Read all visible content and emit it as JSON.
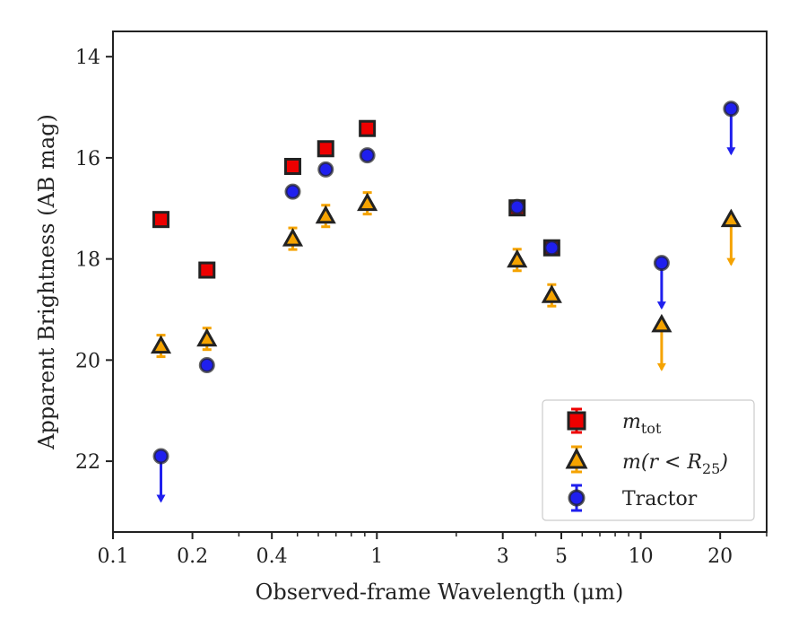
{
  "chart_data": {
    "type": "scatter",
    "xlabel": "Observed-frame Wavelength (μm)",
    "ylabel": "Apparent Brightness (AB mag)",
    "xscale": "log",
    "xlim": [
      0.1,
      30
    ],
    "ylim": [
      23.4,
      13.5
    ],
    "y_inverted": true,
    "x_ticks": [
      0.1,
      0.2,
      0.4,
      1,
      3,
      5,
      10,
      20
    ],
    "x_tick_labels": [
      "0.1",
      "0.2",
      "0.4",
      "1",
      "3",
      "5",
      "10",
      "20"
    ],
    "y_ticks": [
      14,
      16,
      18,
      20,
      22
    ],
    "y_tick_labels": [
      "14",
      "16",
      "18",
      "20",
      "22"
    ],
    "grid": false,
    "legend_position": "bottom-right",
    "series": [
      {
        "name": "m_tot",
        "marker": "square",
        "color": "#ee0000",
        "points": [
          {
            "x": 0.152,
            "y": 17.22
          },
          {
            "x": 0.227,
            "y": 18.22
          },
          {
            "x": 0.48,
            "y": 16.17
          },
          {
            "x": 0.64,
            "y": 15.82
          },
          {
            "x": 0.92,
            "y": 15.42
          },
          {
            "x": 3.4,
            "y": 16.99
          },
          {
            "x": 4.6,
            "y": 17.78
          }
        ]
      },
      {
        "name": "m(r < R25)",
        "marker": "triangle",
        "color": "#f5a300",
        "points": [
          {
            "x": 0.152,
            "y": 19.72
          },
          {
            "x": 0.227,
            "y": 19.58
          },
          {
            "x": 0.48,
            "y": 17.6
          },
          {
            "x": 0.64,
            "y": 17.15
          },
          {
            "x": 0.92,
            "y": 16.9
          },
          {
            "x": 3.4,
            "y": 18.02
          },
          {
            "x": 4.6,
            "y": 18.72
          },
          {
            "x": 12.0,
            "y": 19.3,
            "upper_limit": true
          },
          {
            "x": 22.0,
            "y": 17.22,
            "upper_limit": true
          }
        ]
      },
      {
        "name": "Tractor",
        "marker": "circle",
        "color": "#1f1fee",
        "points": [
          {
            "x": 0.152,
            "y": 21.9,
            "upper_limit": true
          },
          {
            "x": 0.227,
            "y": 20.1
          },
          {
            "x": 0.48,
            "y": 16.67
          },
          {
            "x": 0.64,
            "y": 16.23
          },
          {
            "x": 0.92,
            "y": 15.95
          },
          {
            "x": 3.4,
            "y": 16.97
          },
          {
            "x": 4.6,
            "y": 17.78
          },
          {
            "x": 12.0,
            "y": 18.08,
            "upper_limit": true
          },
          {
            "x": 22.0,
            "y": 15.03,
            "upper_limit": true
          }
        ]
      }
    ]
  }
}
